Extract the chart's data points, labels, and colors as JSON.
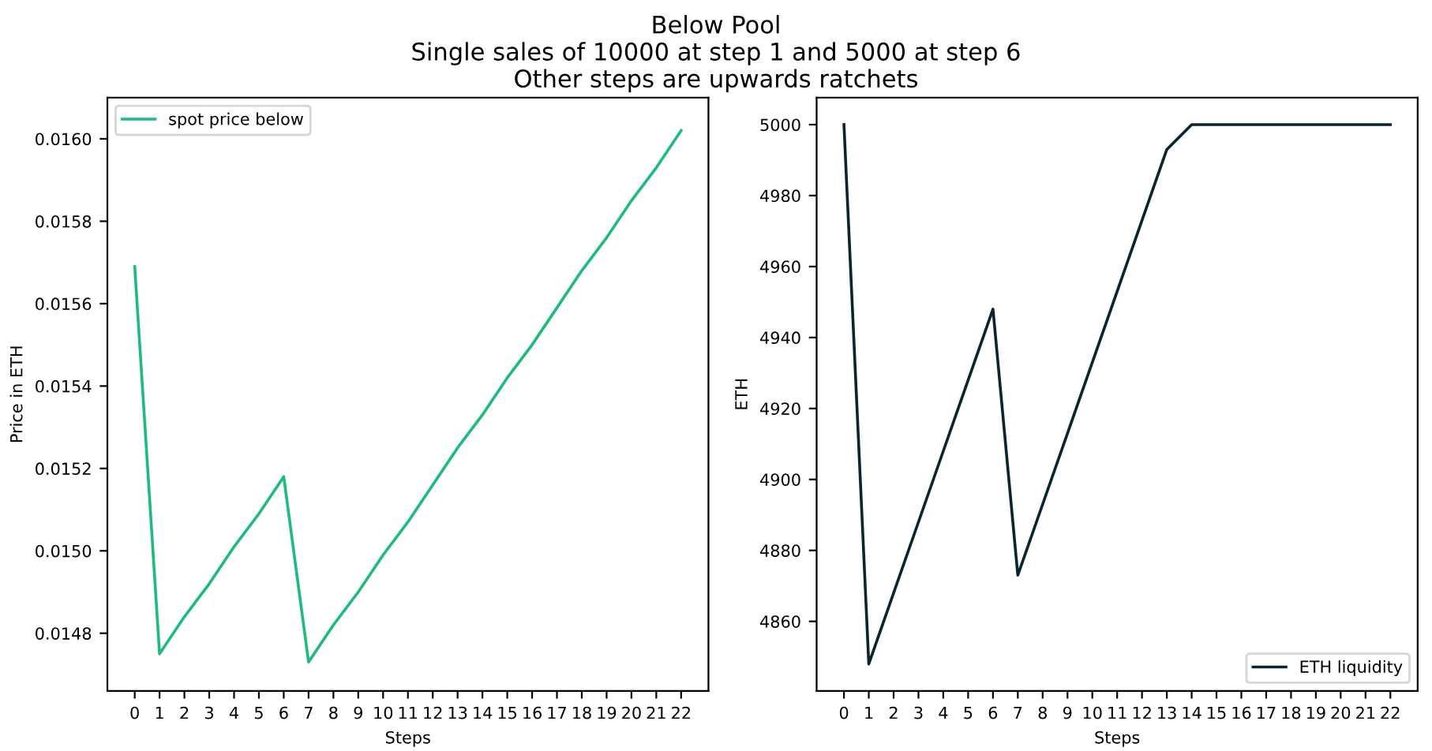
{
  "chart_data": [
    {
      "type": "line",
      "title": "Below Pool\nSingle sales of 10000 at step 1 and 5000 at step 6\nOther steps are upwards ratchets",
      "xlabel": "Steps",
      "ylabel": "Price in ETH",
      "x": [
        0,
        1,
        2,
        3,
        4,
        5,
        6,
        7,
        8,
        9,
        10,
        11,
        12,
        13,
        14,
        15,
        16,
        17,
        18,
        19,
        20,
        21,
        22
      ],
      "series": [
        {
          "name": "spot price below",
          "color": "#1dbb7d",
          "values": [
            0.01569,
            0.01475,
            0.01484,
            0.01492,
            0.01501,
            0.01509,
            0.01518,
            0.01473,
            0.01482,
            0.0149,
            0.01499,
            0.01507,
            0.01516,
            0.01525,
            0.01533,
            0.01542,
            0.0155,
            0.01559,
            0.01568,
            0.01576,
            0.01585,
            0.01593,
            0.01602
          ]
        }
      ],
      "xlim": [
        -1.1,
        23.1
      ],
      "xticks": [
        0,
        1,
        2,
        3,
        4,
        5,
        6,
        7,
        8,
        9,
        10,
        11,
        12,
        13,
        14,
        15,
        16,
        17,
        18,
        19,
        20,
        21,
        22
      ],
      "ylim": [
        0.01466,
        0.0161
      ],
      "yticks": [
        {
          "value": 0.0148,
          "label": "0.0148"
        },
        {
          "value": 0.015,
          "label": "0.0150"
        },
        {
          "value": 0.0152,
          "label": "0.0152"
        },
        {
          "value": 0.0154,
          "label": "0.0154"
        },
        {
          "value": 0.0156,
          "label": "0.0156"
        },
        {
          "value": 0.0158,
          "label": "0.0158"
        },
        {
          "value": 0.016,
          "label": "0.0160"
        }
      ],
      "legend": "top left",
      "grid": false
    },
    {
      "type": "line",
      "xlabel": "Steps",
      "ylabel": "ETH",
      "x": [
        0,
        1,
        2,
        3,
        4,
        5,
        6,
        7,
        8,
        9,
        10,
        11,
        12,
        13,
        14,
        15,
        16,
        17,
        18,
        19,
        20,
        21,
        22
      ],
      "series": [
        {
          "name": "ETH liquidity",
          "color": "#0b2530",
          "values": [
            5000,
            4848,
            4868,
            4888,
            4908,
            4928,
            4948,
            4873,
            4893,
            4913,
            4933,
            4953,
            4973,
            4993,
            5000,
            5000,
            5000,
            5000,
            5000,
            5000,
            5000,
            5000,
            5000
          ]
        }
      ],
      "xlim": [
        -1.1,
        23.1
      ],
      "xticks": [
        0,
        1,
        2,
        3,
        4,
        5,
        6,
        7,
        8,
        9,
        10,
        11,
        12,
        13,
        14,
        15,
        16,
        17,
        18,
        19,
        20,
        21,
        22
      ],
      "ylim": [
        4840.4,
        5007.6
      ],
      "yticks": [
        4860,
        4880,
        4900,
        4920,
        4940,
        4960,
        4980,
        5000
      ],
      "legend": "bottom right",
      "grid": false
    }
  ]
}
